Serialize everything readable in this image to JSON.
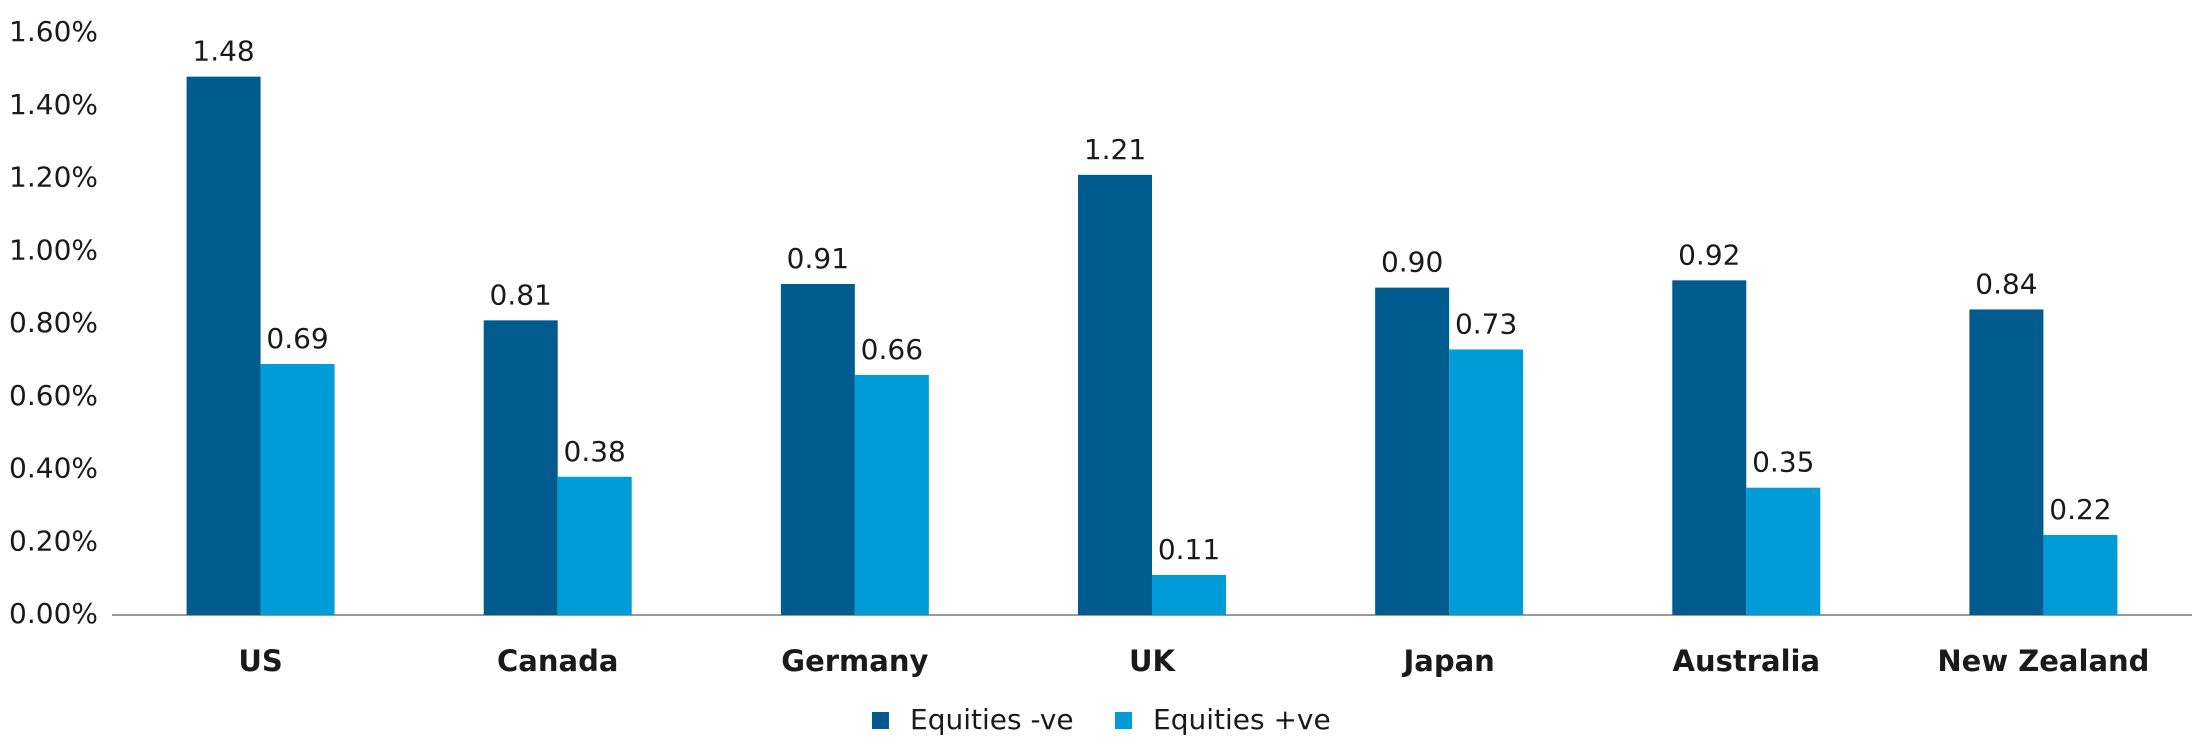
{
  "chart_data": {
    "type": "bar",
    "categories": [
      "US",
      "Canada",
      "Germany",
      "UK",
      "Japan",
      "Australia",
      "New Zealand"
    ],
    "series": [
      {
        "name": "Equities -ve",
        "color": "#005b8e",
        "values": [
          1.48,
          0.81,
          0.91,
          1.21,
          0.9,
          0.92,
          0.84
        ],
        "value_labels": [
          "1.48",
          "0.81",
          "0.91",
          "1.21",
          "0.90",
          "0.92",
          "0.84"
        ]
      },
      {
        "name": "Equities +ve",
        "color": "#009cd9",
        "values": [
          0.69,
          0.38,
          0.66,
          0.11,
          0.73,
          0.35,
          0.22
        ],
        "value_labels": [
          "0.69",
          "0.38",
          "0.66",
          "0.11",
          "0.73",
          "0.35",
          "0.22"
        ]
      }
    ],
    "ylim": [
      0,
      1.6
    ],
    "yticks": [
      {
        "value": 0,
        "label": "0.00%"
      },
      {
        "value": 0.2,
        "label": "0.20%"
      },
      {
        "value": 0.4,
        "label": "0.40%"
      },
      {
        "value": 0.6,
        "label": "0.60%"
      },
      {
        "value": 0.8,
        "label": "0.80%"
      },
      {
        "value": 1.0,
        "label": "1.00%"
      },
      {
        "value": 1.2,
        "label": "1.20%"
      },
      {
        "value": 1.4,
        "label": "1.40%"
      },
      {
        "value": 1.6,
        "label": "1.60%"
      }
    ],
    "grid": false,
    "legend": "bottom"
  }
}
